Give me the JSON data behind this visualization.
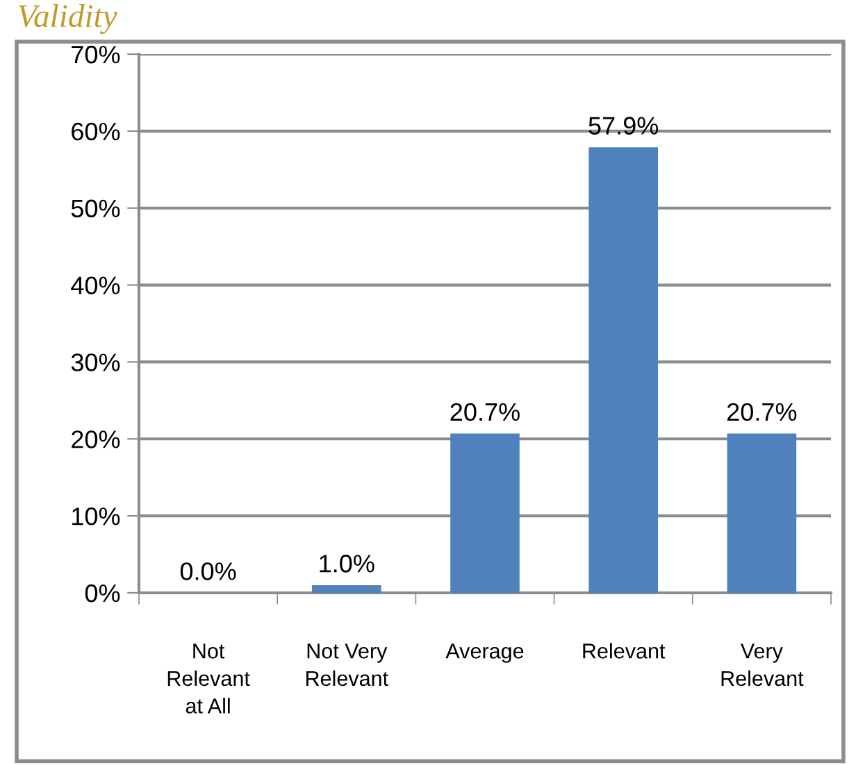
{
  "chart_data": {
    "type": "bar",
    "title": "Validity",
    "categories": [
      "Not\nRelevant\nat All",
      "Not Very\nRelevant",
      "Average",
      "Relevant",
      "Very\nRelevant"
    ],
    "values": [
      0.0,
      1.0,
      20.7,
      57.9,
      20.7
    ],
    "color": "#4f81bd",
    "ylim": [
      0,
      70
    ],
    "yticks": [
      {
        "value": 0,
        "label": "0%"
      },
      {
        "value": 10,
        "label": "10%"
      },
      {
        "value": 20,
        "label": "20%"
      },
      {
        "value": 30,
        "label": "30%"
      },
      {
        "value": 40,
        "label": "40%"
      },
      {
        "value": 50,
        "label": "50%"
      },
      {
        "value": 60,
        "label": "60%"
      },
      {
        "value": 70,
        "label": "70%"
      }
    ],
    "grid": "y",
    "value_labels": [
      "0.0%",
      "1.0%",
      "20.7%",
      "57.9%",
      "20.7%"
    ]
  }
}
